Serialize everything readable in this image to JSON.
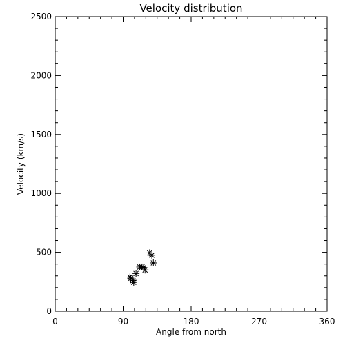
{
  "chart_data": {
    "type": "scatter",
    "title": "Velocity distribution",
    "xlabel": "Angle from north",
    "ylabel": "Velocity (km/s)",
    "xlim": [
      0,
      360
    ],
    "ylim": [
      0,
      2500
    ],
    "xticks": [
      0,
      90,
      180,
      270,
      360
    ],
    "yticks": [
      0,
      500,
      1000,
      1500,
      2000,
      2500
    ],
    "xtick_labels": [
      "0",
      "90",
      "180",
      "270",
      "360"
    ],
    "ytick_labels": [
      "0",
      "500",
      "1000",
      "1500",
      "2000",
      "2500"
    ],
    "grid": false,
    "marker": "asterisk",
    "color": "#000000",
    "points": [
      {
        "x": 99,
        "y": 290
      },
      {
        "x": 100,
        "y": 280
      },
      {
        "x": 103,
        "y": 260
      },
      {
        "x": 104,
        "y": 245
      },
      {
        "x": 107,
        "y": 320
      },
      {
        "x": 112,
        "y": 375
      },
      {
        "x": 115,
        "y": 375
      },
      {
        "x": 117,
        "y": 370
      },
      {
        "x": 119,
        "y": 350
      },
      {
        "x": 125,
        "y": 495
      },
      {
        "x": 128,
        "y": 475
      },
      {
        "x": 130,
        "y": 410
      }
    ]
  }
}
